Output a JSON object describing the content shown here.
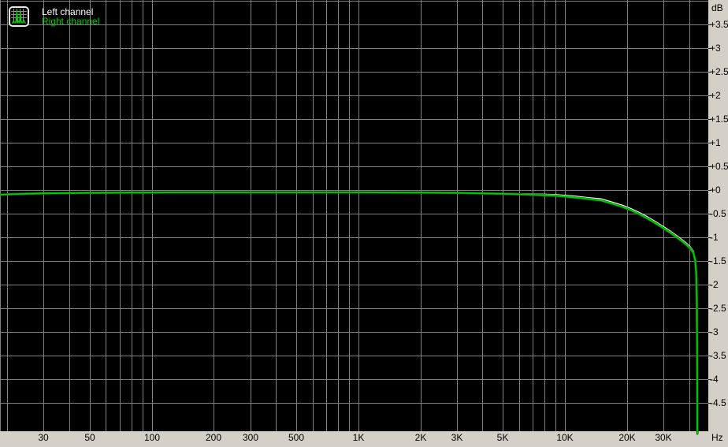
{
  "legend": {
    "items": [
      {
        "label": "Left channel",
        "color": "#ffffff"
      },
      {
        "label": "Right channel",
        "color": "#00cc00"
      }
    ]
  },
  "colors": {
    "background": "#000000",
    "grid": "#7f7f7f",
    "axis_background": "#d4d0c8",
    "axis_text": "#000000",
    "tick_mark": "#1a1a1a",
    "left_channel": "#ffffff",
    "right_channel": "#00cc00",
    "right_channel_edge": "#0a6a0a"
  },
  "chart_data": {
    "type": "line",
    "x_scale": "log",
    "xlabel": "Hz",
    "ylabel": "dB",
    "x_range_hz": [
      18.43,
      49560
    ],
    "y_range_db": [
      -5.1,
      4.017
    ],
    "grid": {
      "x_values": [
        20,
        30,
        40,
        50,
        60,
        70,
        80,
        90,
        100,
        200,
        300,
        400,
        500,
        600,
        700,
        800,
        900,
        1000,
        2000,
        3000,
        4000,
        5000,
        6000,
        7000,
        8000,
        9000,
        10000,
        20000,
        30000,
        40000
      ],
      "y_values": [
        4,
        3.5,
        3,
        2.5,
        2,
        1.5,
        1,
        0.5,
        0,
        -0.5,
        -1,
        -1.5,
        -2,
        -2.5,
        -3,
        -3.5,
        -4,
        -4.5
      ]
    },
    "x_ticks": [
      {
        "label": "30",
        "value": 30
      },
      {
        "label": "50",
        "value": 50
      },
      {
        "label": "100",
        "value": 100
      },
      {
        "label": "200",
        "value": 200
      },
      {
        "label": "300",
        "value": 300
      },
      {
        "label": "500",
        "value": 500
      },
      {
        "label": "1K",
        "value": 1000
      },
      {
        "label": "2K",
        "value": 2000
      },
      {
        "label": "3K",
        "value": 3000
      },
      {
        "label": "5K",
        "value": 5000
      },
      {
        "label": "10K",
        "value": 10000
      },
      {
        "label": "20K",
        "value": 20000
      },
      {
        "label": "30K",
        "value": 30000
      }
    ],
    "y_ticks": [
      {
        "label": "+3.5",
        "value": 3.5
      },
      {
        "label": "+3",
        "value": 3
      },
      {
        "label": "+2.5",
        "value": 2.5
      },
      {
        "label": "+2",
        "value": 2
      },
      {
        "label": "+1.5",
        "value": 1.5
      },
      {
        "label": "+1",
        "value": 1
      },
      {
        "label": "+0.5",
        "value": 0.5
      },
      {
        "label": "+0",
        "value": 0
      },
      {
        "label": "-0.5",
        "value": -0.5
      },
      {
        "label": "-1",
        "value": -1
      },
      {
        "label": "-1.5",
        "value": -1.5
      },
      {
        "label": "-2",
        "value": -2
      },
      {
        "label": "-2.5",
        "value": -2.5
      },
      {
        "label": "-3",
        "value": -3
      },
      {
        "label": "-3.5",
        "value": -3.5
      },
      {
        "label": "-4",
        "value": -4
      },
      {
        "label": "-4.5",
        "value": -4.5
      }
    ],
    "series": [
      {
        "name": "Left channel",
        "color": "#ffffff",
        "points": [
          [
            18.43,
            -0.1
          ],
          [
            22,
            -0.085
          ],
          [
            30,
            -0.07
          ],
          [
            50,
            -0.06
          ],
          [
            80,
            -0.055
          ],
          [
            150,
            -0.05
          ],
          [
            400,
            -0.05
          ],
          [
            1000,
            -0.05
          ],
          [
            2000,
            -0.055
          ],
          [
            3000,
            -0.06
          ],
          [
            5000,
            -0.075
          ],
          [
            7000,
            -0.085
          ],
          [
            9000,
            -0.1
          ],
          [
            11000,
            -0.13
          ],
          [
            13000,
            -0.165
          ],
          [
            15000,
            -0.19
          ],
          [
            17000,
            -0.26
          ],
          [
            19000,
            -0.325
          ],
          [
            21000,
            -0.4
          ],
          [
            23000,
            -0.48
          ],
          [
            25000,
            -0.565
          ],
          [
            27000,
            -0.65
          ],
          [
            29000,
            -0.735
          ],
          [
            31000,
            -0.815
          ],
          [
            33000,
            -0.895
          ],
          [
            35000,
            -0.975
          ],
          [
            37000,
            -1.055
          ],
          [
            39000,
            -1.135
          ],
          [
            40500,
            -1.205
          ],
          [
            42000,
            -1.3
          ],
          [
            42800,
            -1.45
          ],
          [
            43300,
            -1.72
          ],
          [
            43600,
            -2.27
          ],
          [
            43750,
            -3.17
          ],
          [
            43820,
            -4.17
          ],
          [
            43860,
            -5.15
          ]
        ]
      },
      {
        "name": "Right channel",
        "color": "#00cc00",
        "edge": "#0a6a0a",
        "points": [
          [
            18.43,
            -0.1
          ],
          [
            22,
            -0.085
          ],
          [
            30,
            -0.07
          ],
          [
            50,
            -0.06
          ],
          [
            80,
            -0.055
          ],
          [
            150,
            -0.05
          ],
          [
            400,
            -0.05
          ],
          [
            1000,
            -0.05
          ],
          [
            2000,
            -0.055
          ],
          [
            3000,
            -0.06
          ],
          [
            5000,
            -0.08
          ],
          [
            7000,
            -0.1
          ],
          [
            9000,
            -0.12
          ],
          [
            11000,
            -0.155
          ],
          [
            13000,
            -0.19
          ],
          [
            15000,
            -0.22
          ],
          [
            17000,
            -0.29
          ],
          [
            19000,
            -0.355
          ],
          [
            21000,
            -0.43
          ],
          [
            23000,
            -0.51
          ],
          [
            25000,
            -0.595
          ],
          [
            27000,
            -0.68
          ],
          [
            29000,
            -0.765
          ],
          [
            31000,
            -0.845
          ],
          [
            33000,
            -0.925
          ],
          [
            35000,
            -1.005
          ],
          [
            37000,
            -1.085
          ],
          [
            39000,
            -1.165
          ],
          [
            40500,
            -1.235
          ],
          [
            42000,
            -1.33
          ],
          [
            42800,
            -1.48
          ],
          [
            43300,
            -1.75
          ],
          [
            43600,
            -2.3
          ],
          [
            43750,
            -3.2
          ],
          [
            43820,
            -4.2
          ],
          [
            43860,
            -5.15
          ]
        ]
      }
    ]
  }
}
